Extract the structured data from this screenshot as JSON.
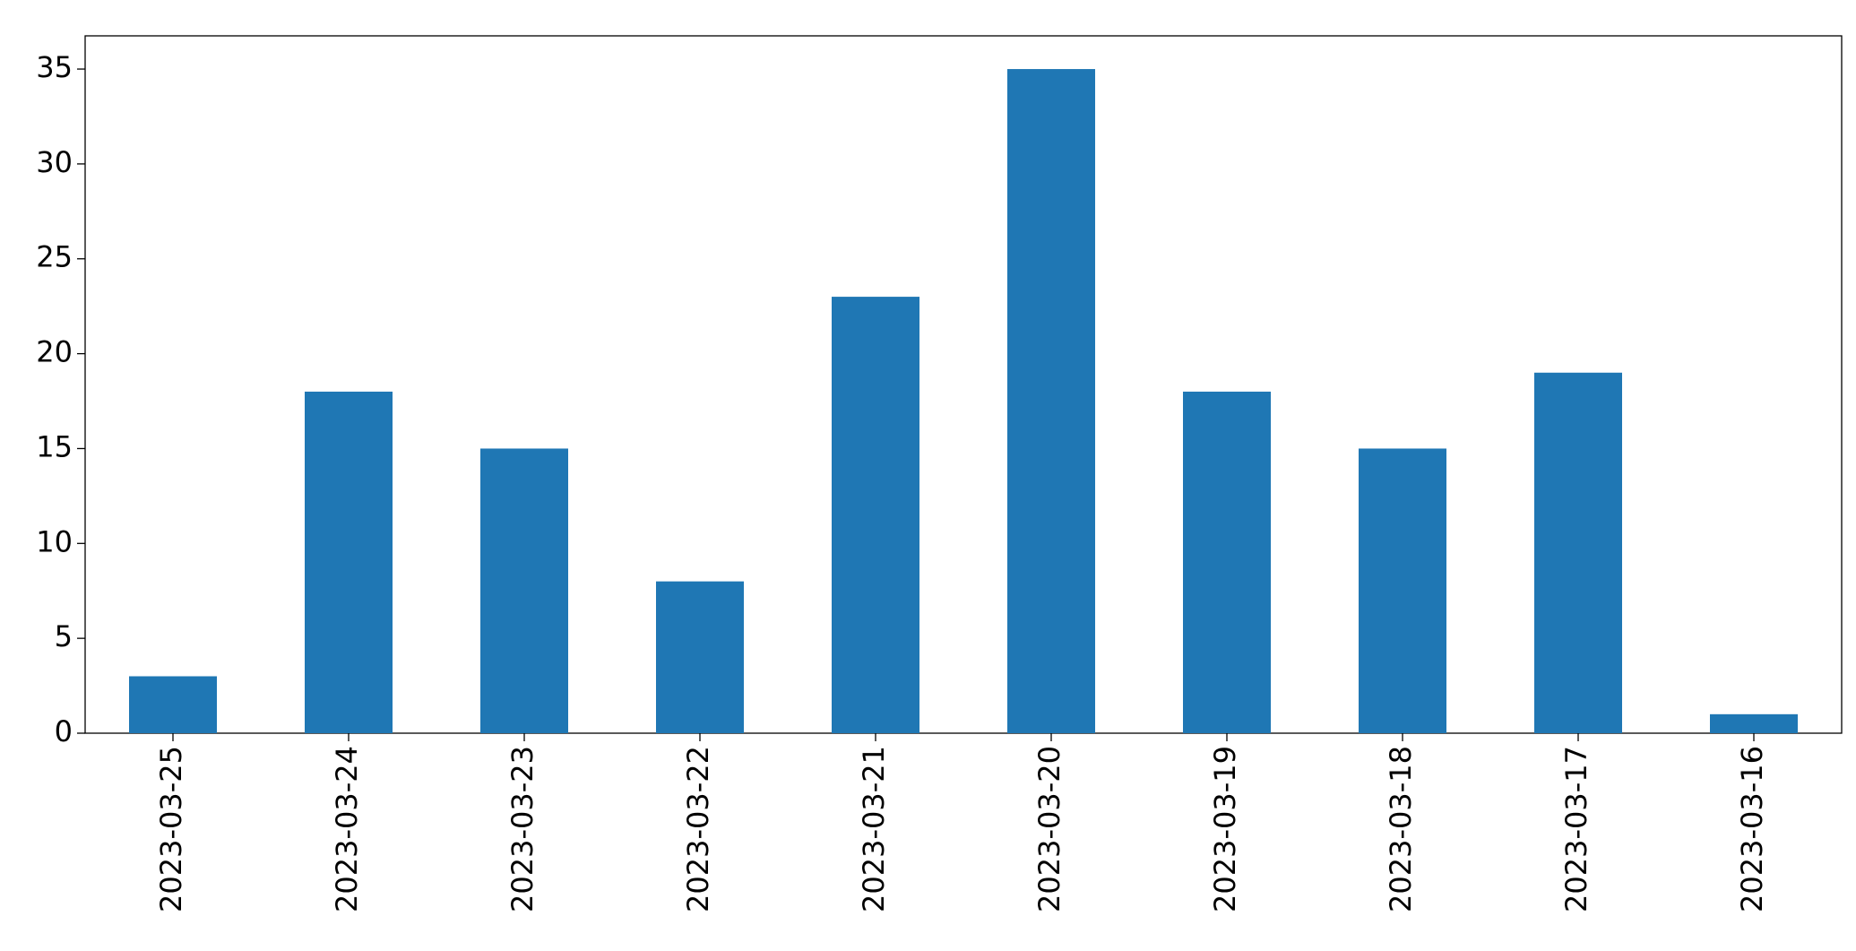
{
  "chart_data": {
    "type": "bar",
    "categories": [
      "2023-03-25",
      "2023-03-24",
      "2023-03-23",
      "2023-03-22",
      "2023-03-21",
      "2023-03-20",
      "2023-03-19",
      "2023-03-18",
      "2023-03-17",
      "2023-03-16"
    ],
    "values": [
      3,
      18,
      15,
      8,
      23,
      35,
      18,
      15,
      19,
      1
    ],
    "color": "#1f77b4",
    "ylim": [
      0,
      36.75
    ],
    "yticks": [
      0,
      5,
      10,
      15,
      20,
      25,
      30,
      35
    ],
    "grid": false
  }
}
